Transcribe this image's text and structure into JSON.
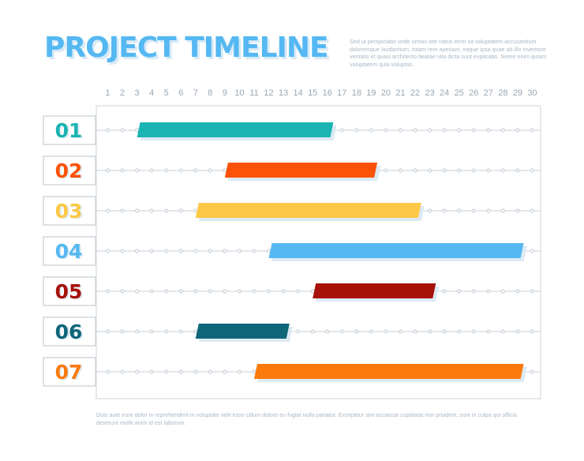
{
  "title": "PROJECT TIMELINE",
  "description_top": "Sed ut perspiciatis unde omnis iste natus error sit voluptatem accusantium doloremque laudantium, totam rem aperiam, eaque ipsa quae ab illo inventore veritatis et quasi architecto beatae vita dicta sunt explicabo. Nemo enim ipsam voluptatem quia voluptas.",
  "description_bottom": "Duis aute irure dolor in reprehenderit in voluptate velit esse cillum dolore eu fugiat nulla pariatur. Excepteur sint occaecat cupidatat non proident, sunt in culpa qui officia deserunt mollit anim id est laborum.",
  "chart_data": {
    "type": "gantt",
    "x_ticks": [
      1,
      2,
      3,
      4,
      5,
      6,
      7,
      8,
      9,
      10,
      11,
      12,
      13,
      14,
      15,
      16,
      17,
      18,
      19,
      20,
      21,
      22,
      23,
      24,
      25,
      26,
      27,
      28,
      29,
      30
    ],
    "xlim": [
      1,
      30
    ],
    "tasks": [
      {
        "label": "01",
        "start": 3.0,
        "end": 16.2,
        "color": "#1ab4b2"
      },
      {
        "label": "02",
        "start": 9.0,
        "end": 19.2,
        "color": "#fb5208"
      },
      {
        "label": "03",
        "start": 7.0,
        "end": 22.2,
        "color": "#fcc845"
      },
      {
        "label": "04",
        "start": 12.0,
        "end": 29.2,
        "color": "#55b8f2"
      },
      {
        "label": "05",
        "start": 15.0,
        "end": 23.2,
        "color": "#a7110a"
      },
      {
        "label": "06",
        "start": 7.0,
        "end": 13.2,
        "color": "#0f6679"
      },
      {
        "label": "07",
        "start": 11.0,
        "end": 29.2,
        "color": "#fb7a0c"
      }
    ]
  }
}
